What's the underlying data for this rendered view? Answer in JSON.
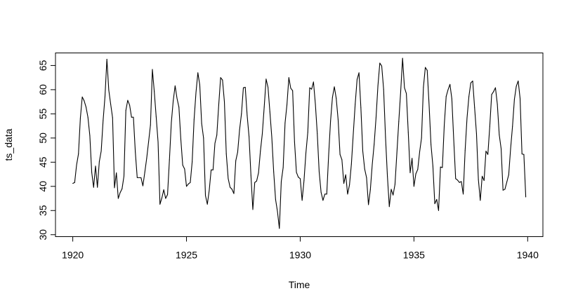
{
  "chart_data": {
    "type": "line",
    "title": "",
    "xlabel": "Time",
    "ylabel": "ts_data",
    "xlim": [
      1919.24,
      1940.67
    ],
    "ylim": [
      29.6,
      67.6
    ],
    "x_ticks": [
      1920,
      1925,
      1930,
      1935,
      1940
    ],
    "x_tick_labels": [
      "1920",
      "1925",
      "1930",
      "1935",
      "1940"
    ],
    "y_ticks": [
      30,
      35,
      40,
      45,
      50,
      55,
      60,
      65
    ],
    "y_tick_labels": [
      "30",
      "35",
      "40",
      "45",
      "50",
      "55",
      "60",
      "65"
    ],
    "grid": false,
    "legend": "none",
    "line_color": "#000000",
    "x_start": 1920,
    "frequency": 12,
    "series": [
      {
        "values": [
          40.6,
          40.8,
          44.4,
          46.7,
          54.1,
          58.5,
          57.7,
          56.4,
          54.3,
          50.5,
          42.9,
          39.8,
          44.2,
          39.8,
          45.1,
          47.3,
          53.6,
          58.6,
          66.3,
          59.9,
          57.0,
          54.2,
          39.7,
          42.8,
          37.5,
          38.7,
          39.5,
          42.1,
          55.7,
          57.8,
          56.8,
          54.3,
          54.3,
          47.1,
          41.8,
          41.8,
          41.8,
          40.1,
          42.9,
          45.8,
          49.2,
          52.7,
          64.2,
          59.6,
          54.4,
          49.2,
          36.3,
          37.6,
          39.3,
          37.5,
          38.3,
          45.5,
          53.2,
          57.7,
          60.8,
          58.2,
          56.4,
          49.8,
          44.4,
          43.6,
          40.0,
          40.5,
          40.8,
          45.1,
          53.8,
          59.4,
          63.5,
          61.0,
          53.0,
          50.0,
          38.1,
          36.3,
          39.2,
          43.4,
          43.4,
          48.9,
          50.6,
          56.8,
          62.5,
          62.0,
          57.5,
          46.7,
          41.6,
          39.8,
          39.4,
          38.5,
          45.3,
          47.1,
          51.7,
          55.0,
          60.4,
          60.5,
          54.7,
          50.3,
          42.3,
          35.2,
          40.8,
          41.1,
          42.8,
          47.3,
          50.9,
          56.4,
          62.2,
          60.5,
          55.4,
          50.2,
          43.0,
          37.3,
          34.8,
          31.3,
          41.0,
          43.9,
          53.1,
          56.9,
          62.5,
          60.3,
          59.8,
          49.2,
          42.9,
          41.9,
          41.6,
          37.1,
          41.2,
          46.9,
          51.2,
          60.4,
          60.1,
          61.6,
          57.0,
          50.9,
          43.0,
          38.8,
          37.1,
          38.4,
          38.4,
          46.5,
          53.5,
          58.4,
          60.6,
          58.2,
          53.8,
          46.6,
          45.5,
          40.6,
          42.4,
          38.4,
          40.3,
          44.6,
          50.9,
          57.0,
          62.1,
          63.5,
          56.3,
          47.3,
          43.6,
          41.8,
          36.2,
          39.3,
          44.5,
          48.7,
          54.2,
          60.8,
          65.5,
          64.9,
          60.1,
          50.2,
          42.1,
          35.8,
          39.4,
          38.2,
          40.4,
          46.9,
          53.4,
          59.6,
          66.5,
          60.4,
          59.2,
          51.2,
          42.8,
          45.8,
          40.0,
          42.6,
          43.5,
          47.1,
          50.0,
          60.5,
          64.6,
          64.0,
          56.8,
          48.6,
          44.2,
          36.4,
          37.3,
          35.0,
          44.0,
          43.9,
          52.7,
          58.6,
          60.0,
          61.1,
          58.1,
          49.6,
          41.6,
          41.3,
          40.8,
          41.0,
          38.4,
          47.4,
          54.1,
          58.6,
          61.4,
          61.8,
          56.3,
          50.9,
          41.4,
          37.1,
          42.1,
          41.2,
          47.3,
          46.6,
          52.4,
          59.0,
          59.6,
          60.4,
          57.0,
          50.7,
          47.8,
          39.2,
          39.4,
          40.9,
          42.4,
          47.8,
          52.4,
          58.0,
          60.7,
          61.8,
          58.2,
          46.7,
          46.6,
          37.8
        ]
      }
    ]
  }
}
